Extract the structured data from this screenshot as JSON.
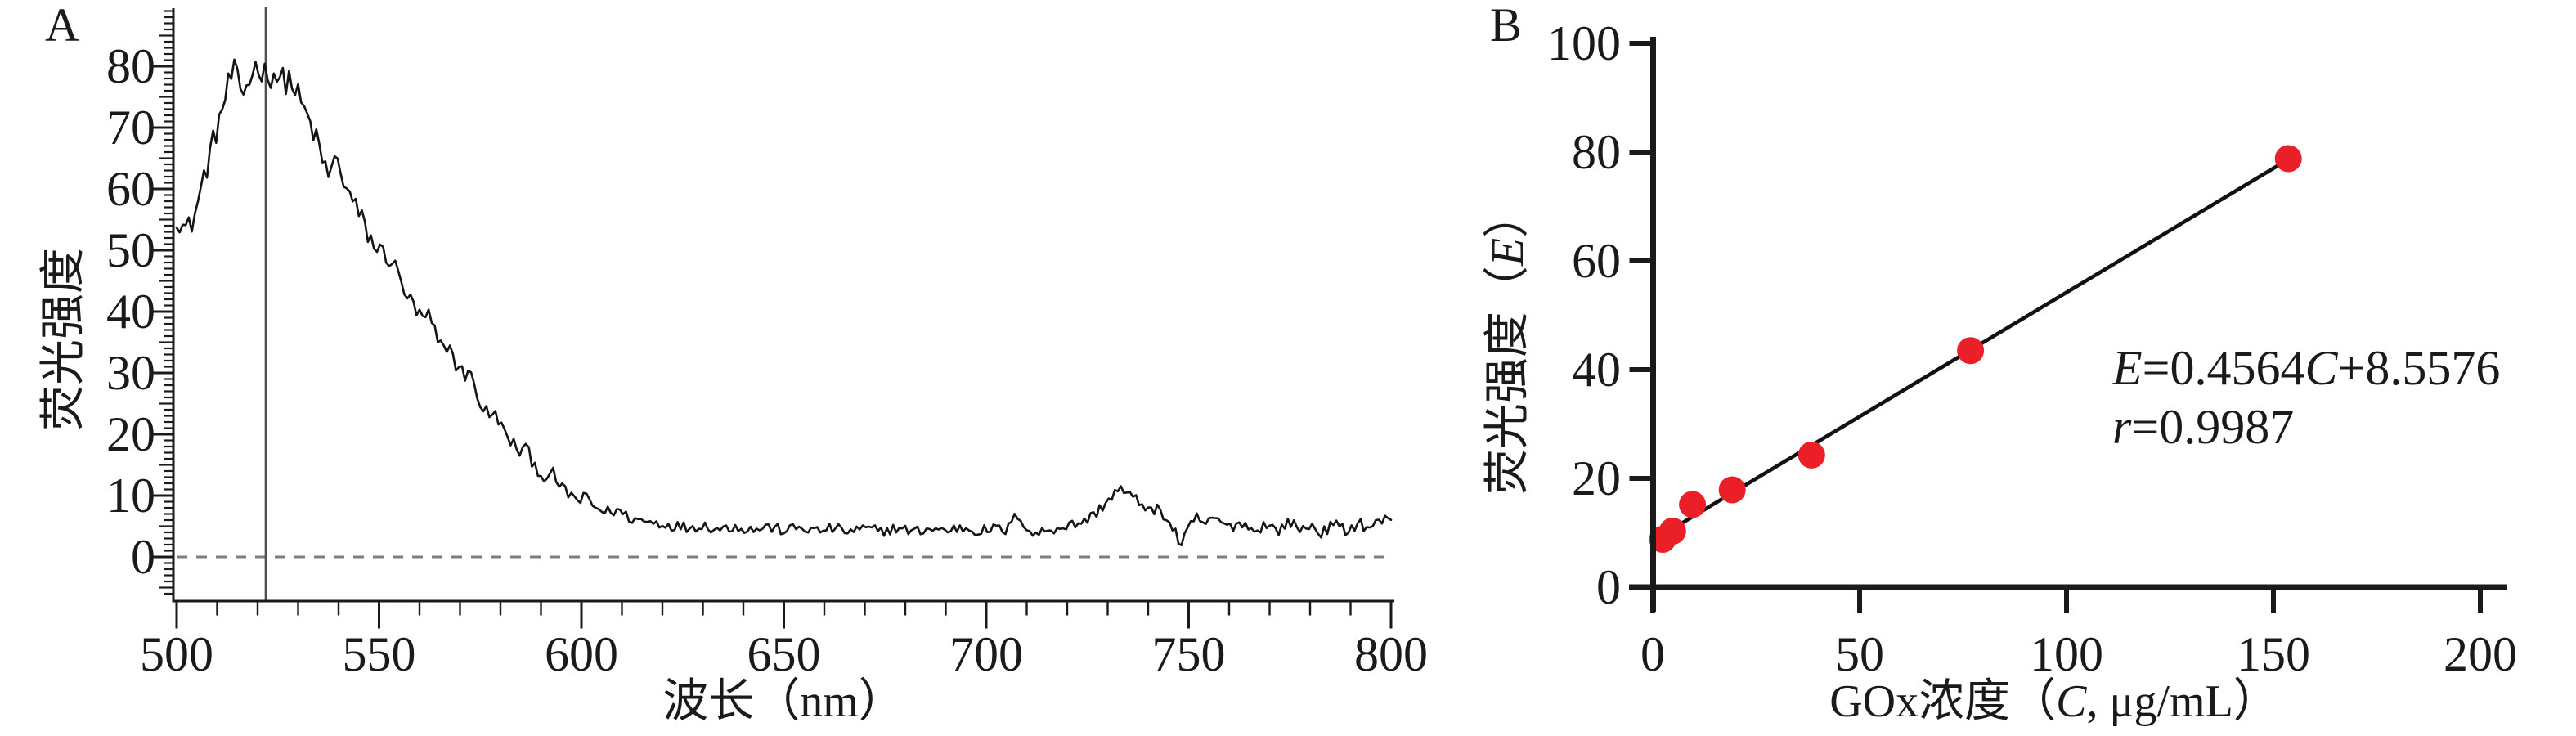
{
  "figure_type": "two-panel scientific figure",
  "panel_letters": {
    "a": "A",
    "b": "B"
  },
  "chart_data": [
    {
      "id": "A",
      "label": "A",
      "type": "line",
      "title": "",
      "xlabel": "波长（nm）",
      "ylabel": "荧光强度",
      "x_ticks": [
        500,
        550,
        600,
        650,
        700,
        750,
        800
      ],
      "y_ticks": [
        0,
        10,
        20,
        30,
        40,
        50,
        60,
        70,
        80
      ],
      "x_range": [
        500,
        800
      ],
      "y_axis_drawn_range": [
        -6,
        89
      ],
      "grid": false,
      "marker_line_x_nm": 522,
      "zero_dashed_line_y": 0,
      "curve_color": "#151515",
      "marker_line_color": "#4f4f4f",
      "dash_color": "#7d7d7d",
      "axis_color": "#1a1a1a",
      "noise": {
        "seed": 12345,
        "base_amp": 0.8,
        "amp_per_unit": 0.02,
        "step_nm": 0.75,
        "clamp": [
          0.7,
          81.8
        ]
      },
      "spectrum_anchors": [
        [
          500,
          55.5
        ],
        [
          502,
          53.5
        ],
        [
          503.5,
          54
        ],
        [
          505,
          57
        ],
        [
          506,
          60
        ],
        [
          508,
          65
        ],
        [
          510,
          70
        ],
        [
          512,
          75
        ],
        [
          514,
          79.5
        ],
        [
          516,
          75
        ],
        [
          518,
          78
        ],
        [
          520,
          80.5
        ],
        [
          522,
          78.5
        ],
        [
          524,
          79
        ],
        [
          526,
          77.5
        ],
        [
          528,
          78
        ],
        [
          530,
          75
        ],
        [
          532,
          72
        ],
        [
          534,
          69
        ],
        [
          536,
          64.5
        ],
        [
          538,
          62
        ],
        [
          539,
          65
        ],
        [
          541,
          62
        ],
        [
          543,
          58.5
        ],
        [
          545,
          56
        ],
        [
          547,
          53
        ],
        [
          549,
          50.5
        ],
        [
          551,
          49.5
        ],
        [
          553,
          48.5
        ],
        [
          555,
          45.5
        ],
        [
          557,
          42.5
        ],
        [
          559,
          40
        ],
        [
          561,
          38.5
        ],
        [
          562,
          39.5
        ],
        [
          564,
          36
        ],
        [
          566,
          33.5
        ],
        [
          567,
          35
        ],
        [
          569,
          31.5
        ],
        [
          571,
          29.5
        ],
        [
          572,
          31
        ],
        [
          574,
          26.5
        ],
        [
          576,
          24
        ],
        [
          578,
          22.5
        ],
        [
          579,
          23.5
        ],
        [
          581,
          20
        ],
        [
          583,
          18.5
        ],
        [
          585,
          17
        ],
        [
          586,
          18
        ],
        [
          588,
          15.5
        ],
        [
          590,
          13.5
        ],
        [
          592,
          12.5
        ],
        [
          593,
          13.5
        ],
        [
          595,
          11.2
        ],
        [
          597,
          10.2
        ],
        [
          600,
          9
        ],
        [
          601,
          10
        ],
        [
          603,
          8.2
        ],
        [
          606,
          7.3
        ],
        [
          609,
          7.6
        ],
        [
          612,
          6.3
        ],
        [
          615,
          5.9
        ],
        [
          618,
          5.6
        ],
        [
          622,
          5.2
        ],
        [
          626,
          4.8
        ],
        [
          630,
          5.2
        ],
        [
          634,
          4.5
        ],
        [
          638,
          5
        ],
        [
          642,
          4.4
        ],
        [
          646,
          4.9
        ],
        [
          650,
          4.3
        ],
        [
          654,
          4.8
        ],
        [
          658,
          4.2
        ],
        [
          662,
          4.7
        ],
        [
          666,
          4.1
        ],
        [
          670,
          4.6
        ],
        [
          674,
          4.2
        ],
        [
          678,
          4.7
        ],
        [
          682,
          4.1
        ],
        [
          686,
          4.6
        ],
        [
          690,
          4.3
        ],
        [
          694,
          4.8
        ],
        [
          698,
          4.2
        ],
        [
          702,
          4.6
        ],
        [
          705,
          4.3
        ],
        [
          708,
          7.2
        ],
        [
          710,
          4.5
        ],
        [
          712,
          3.6
        ],
        [
          715,
          4.4
        ],
        [
          718,
          4.8
        ],
        [
          721,
          5.2
        ],
        [
          724,
          5.8
        ],
        [
          726,
          6.5
        ],
        [
          728,
          7.8
        ],
        [
          730,
          9.2
        ],
        [
          732,
          10.6
        ],
        [
          733,
          11
        ],
        [
          735,
          10.2
        ],
        [
          737,
          9.2
        ],
        [
          739,
          8.6
        ],
        [
          741,
          7.2
        ],
        [
          743,
          7.8
        ],
        [
          745,
          5.6
        ],
        [
          747,
          3.8
        ],
        [
          748,
          1.5
        ],
        [
          750,
          4.6
        ],
        [
          752,
          6.4
        ],
        [
          754,
          5.4
        ],
        [
          757,
          6.2
        ],
        [
          760,
          4.7
        ],
        [
          763,
          5.8
        ],
        [
          766,
          4.1
        ],
        [
          769,
          5.4
        ],
        [
          772,
          4.2
        ],
        [
          775,
          5.9
        ],
        [
          777,
          4.4
        ],
        [
          780,
          5.1
        ],
        [
          783,
          3.9
        ],
        [
          786,
          5.4
        ],
        [
          789,
          4.1
        ],
        [
          792,
          5.7
        ],
        [
          794,
          4.7
        ],
        [
          796,
          5.3
        ],
        [
          798,
          6.1
        ],
        [
          800,
          5.8
        ]
      ]
    },
    {
      "id": "B",
      "label": "B",
      "type": "scatter",
      "title": "",
      "xlabel_parts": [
        {
          "text": "GOx浓度（",
          "italic": false
        },
        {
          "text": "C",
          "italic": true
        },
        {
          "text": ", μg/mL）",
          "italic": false
        }
      ],
      "ylabel_parts": [
        {
          "text": "荧光强度（",
          "italic": false
        },
        {
          "text": "E",
          "italic": true
        },
        {
          "text": "）",
          "italic": false
        }
      ],
      "x_ticks": [
        0,
        50,
        100,
        150,
        200
      ],
      "y_ticks": [
        0,
        20,
        40,
        60,
        80,
        100
      ],
      "xlim": [
        0,
        200
      ],
      "ylim": [
        0,
        100
      ],
      "grid": false,
      "x": [
        2.4,
        4.8,
        9.6,
        19.2,
        38.4,
        76.8,
        153.6
      ],
      "y": [
        8.8,
        10.3,
        15.2,
        17.9,
        24.3,
        43.5,
        78.8
      ],
      "point_color": "#ea1f27",
      "line_color": "#111111",
      "axis_color": "#1a1a1a",
      "fit": {
        "slope": 0.4564,
        "intercept": 8.5576,
        "r": 0.9987,
        "line_c_start": 2,
        "line_c_end": 153.6
      },
      "equation_line1_parts": [
        {
          "text": "E",
          "italic": true
        },
        {
          "text": "=0.4564",
          "italic": false
        },
        {
          "text": "C",
          "italic": true
        },
        {
          "text": "+8.5576",
          "italic": false
        }
      ],
      "equation_line2_parts": [
        {
          "text": "r",
          "italic": true
        },
        {
          "text": "=0.9987",
          "italic": false
        }
      ]
    }
  ]
}
